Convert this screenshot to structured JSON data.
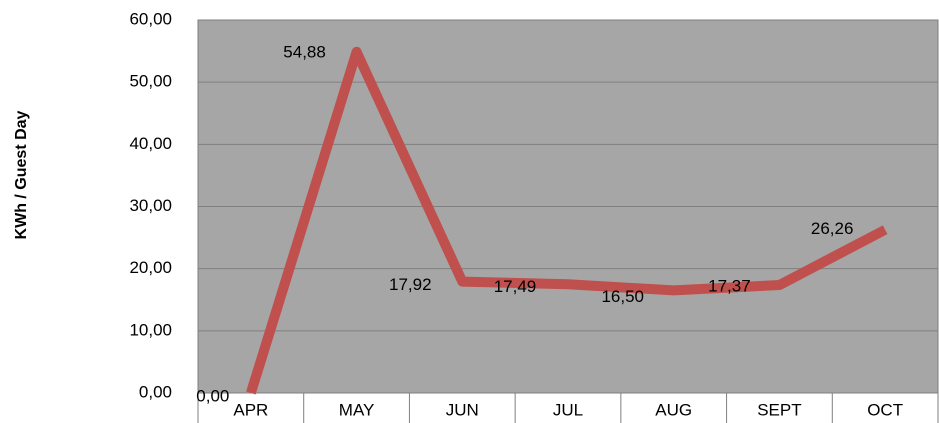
{
  "chart_data": {
    "type": "line",
    "y_label": "KWh / Guest Day",
    "categories": [
      "APR",
      "MAY",
      "JUN",
      "JUL",
      "AUG",
      "SEPT",
      "OCT"
    ],
    "series": [
      {
        "name": "KWh / Guest Day",
        "color": "#c0504d",
        "values": [
          0,
          54.88,
          17.92,
          17.49,
          16.5,
          17.37,
          26.26
        ],
        "value_labels": [
          "0,00",
          "54,88",
          "17,92",
          "17,49",
          "16,50",
          "17,37",
          "26,26"
        ]
      }
    ],
    "ylim": [
      0,
      60
    ],
    "yticks": [
      {
        "value": 0,
        "label": "0,00"
      },
      {
        "value": 10,
        "label": "10,00"
      },
      {
        "value": 20,
        "label": "20,00"
      },
      {
        "value": 30,
        "label": "30,00"
      },
      {
        "value": 40,
        "label": "40,00"
      },
      {
        "value": 50,
        "label": "50,00"
      },
      {
        "value": 60,
        "label": "60,00"
      }
    ],
    "grid": true
  }
}
